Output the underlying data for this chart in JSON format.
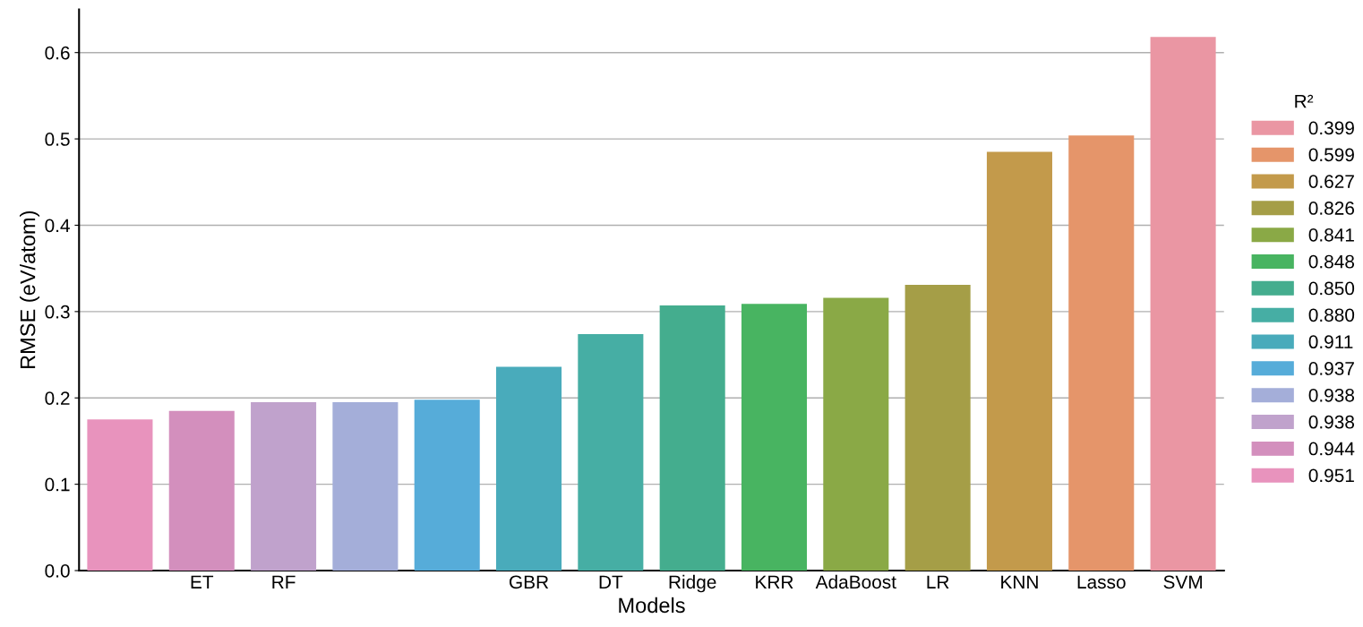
{
  "chart_data": {
    "type": "bar",
    "xlabel": "Models",
    "ylabel": "RMSE (eV/atom)",
    "legend_title": "R²",
    "categories": [
      null,
      "ET",
      "RF",
      null,
      null,
      "GBR",
      "DT",
      "Ridge",
      "KRR",
      "AdaBoost",
      "LR",
      "KNN",
      "Lasso",
      "SVM"
    ],
    "series": [
      {
        "name": "0.399",
        "color": "#ea96a3",
        "values": [
          null,
          null,
          null,
          null,
          null,
          null,
          null,
          null,
          null,
          null,
          null,
          null,
          null,
          0.618
        ]
      },
      {
        "name": "0.599",
        "color": "#e5956a",
        "values": [
          null,
          null,
          null,
          null,
          null,
          null,
          null,
          null,
          null,
          null,
          null,
          null,
          0.504,
          null
        ]
      },
      {
        "name": "0.627",
        "color": "#c39a4b",
        "values": [
          null,
          null,
          null,
          null,
          null,
          null,
          null,
          null,
          null,
          null,
          null,
          0.485,
          null,
          null
        ]
      },
      {
        "name": "0.826",
        "color": "#a59e47",
        "values": [
          null,
          null,
          null,
          null,
          null,
          null,
          null,
          null,
          null,
          null,
          0.331,
          null,
          null,
          null
        ]
      },
      {
        "name": "0.841",
        "color": "#8aa946",
        "values": [
          null,
          null,
          null,
          null,
          null,
          null,
          null,
          null,
          null,
          0.316,
          null,
          null,
          null,
          null
        ]
      },
      {
        "name": "0.848",
        "color": "#48b461",
        "values": [
          null,
          null,
          null,
          null,
          null,
          null,
          null,
          null,
          0.309,
          null,
          null,
          null,
          null,
          null
        ]
      },
      {
        "name": "0.850",
        "color": "#44ad8e",
        "values": [
          null,
          null,
          null,
          null,
          null,
          null,
          null,
          0.307,
          null,
          null,
          null,
          null,
          null,
          null
        ]
      },
      {
        "name": "0.880",
        "color": "#46aea4",
        "values": [
          null,
          null,
          null,
          null,
          null,
          null,
          0.274,
          null,
          null,
          null,
          null,
          null,
          null,
          null
        ]
      },
      {
        "name": "0.911",
        "color": "#49abbb",
        "values": [
          null,
          null,
          null,
          null,
          null,
          0.236,
          null,
          null,
          null,
          null,
          null,
          null,
          null,
          null
        ]
      },
      {
        "name": "0.937",
        "color": "#56acd9",
        "values": [
          null,
          null,
          null,
          null,
          0.198,
          null,
          null,
          null,
          null,
          null,
          null,
          null,
          null,
          null
        ]
      },
      {
        "name": "0.938",
        "color": "#a4aed9",
        "values": [
          null,
          null,
          null,
          0.195,
          null,
          null,
          null,
          null,
          null,
          null,
          null,
          null,
          null,
          null
        ]
      },
      {
        "name": "0.938",
        "color": "#c0a2cc",
        "values": [
          null,
          null,
          0.195,
          null,
          null,
          null,
          null,
          null,
          null,
          null,
          null,
          null,
          null,
          null
        ]
      },
      {
        "name": "0.944",
        "color": "#d38fbd",
        "values": [
          null,
          0.185,
          null,
          null,
          null,
          null,
          null,
          null,
          null,
          null,
          null,
          null,
          null,
          null
        ]
      },
      {
        "name": "0.951",
        "color": "#e893bd",
        "values": [
          0.175,
          null,
          null,
          null,
          null,
          null,
          null,
          null,
          null,
          null,
          null,
          null,
          null,
          null
        ]
      }
    ],
    "ylim": [
      0,
      0.65
    ],
    "yticks": [
      {
        "value": 0,
        "label": "0.0"
      },
      0.1,
      0.2,
      0.3,
      0.4,
      0.5,
      0.6
    ],
    "grid": "y",
    "legend": "right"
  }
}
